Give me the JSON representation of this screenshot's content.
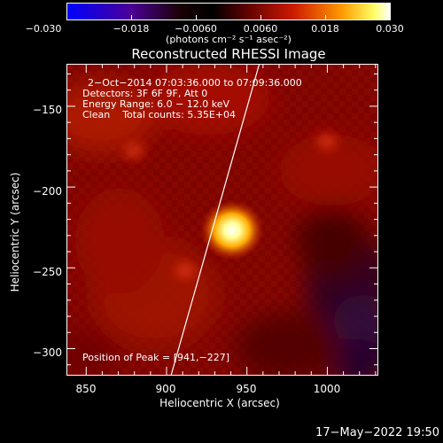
{
  "chart_data": {
    "type": "heatmap",
    "title": "Reconstructed RHESSI Image",
    "xlabel": "Heliocentric X (arcsec)",
    "ylabel": "Heliocentric Y (arcsec)",
    "xlim": [
      838,
      1032
    ],
    "ylim": [
      -317,
      -124
    ],
    "xticks": [
      "850",
      "900",
      "950",
      "1000"
    ],
    "yticks": [
      "−150",
      "−200",
      "−250",
      "−300"
    ],
    "annotations": [
      "2−Oct−2014 07:03:36.000 to 07:09:36.000",
      "Detectors: 3F 6F 9F, Att 0",
      "Energy Range: 6.0 − 12.0 keV",
      "Clean    Total counts: 5.35E+04"
    ],
    "peak_label": "Position of Peak = [941,−227]",
    "peak": [
      941,
      -227
    ],
    "colorbar": {
      "range": [
        -0.03,
        0.03
      ],
      "ticks": [
        "−0.030",
        "−0.018",
        "−0.0060",
        "0.0060",
        "0.018",
        "0.030"
      ],
      "units": "(photons cm⁻² s⁻¹ asec⁻²)"
    },
    "sources": [
      {
        "x": 941,
        "y": -227,
        "value": 0.03
      },
      {
        "x": 880,
        "y": -178,
        "value": 0.012
      },
      {
        "x": 1000,
        "y": -172,
        "value": 0.01
      },
      {
        "x": 912,
        "y": -252,
        "value": 0.011
      }
    ],
    "limb_line": [
      [
        903,
        -317
      ],
      [
        958,
        -124
      ]
    ]
  },
  "footer": {
    "datestamp": "17−May−2022 19:50"
  }
}
